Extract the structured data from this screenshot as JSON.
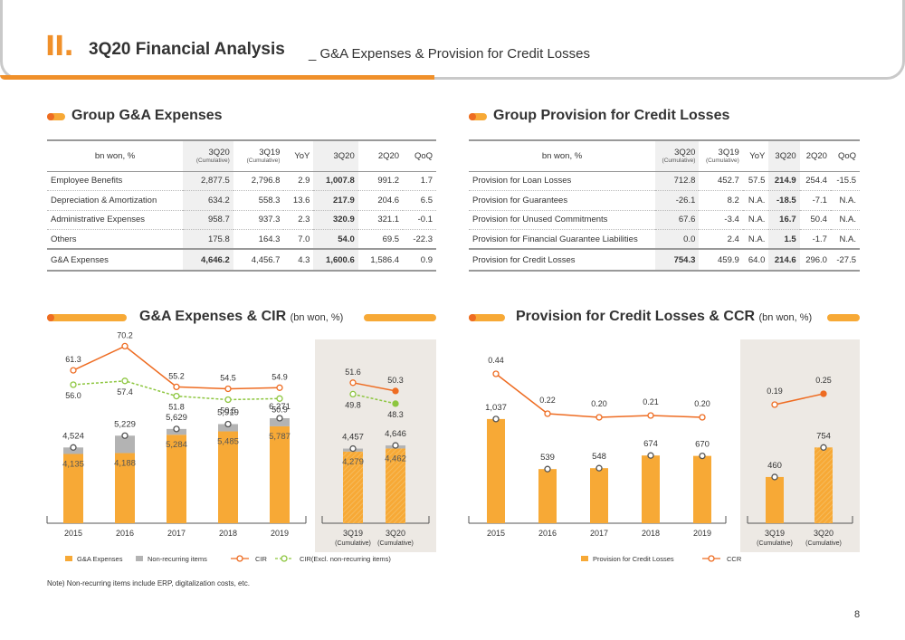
{
  "header": {
    "roman": "II.",
    "title": "3Q20 Financial Analysis",
    "subtitle": "_ G&A Expenses & Provision for Credit Losses"
  },
  "ga_table": {
    "section_title": "Group G&A Expenses",
    "headers": {
      "label": "bn won, %",
      "c1": "3Q20",
      "c1_sub": "(Cumulative)",
      "c2": "3Q19",
      "c2_sub": "(Cumulative)",
      "c3": "YoY",
      "c4": "3Q20",
      "c5": "2Q20",
      "c6": "QoQ"
    },
    "rows": [
      {
        "label": "Employee Benefits",
        "v": [
          "2,877.5",
          "2,796.8",
          "2.9",
          "1,007.8",
          "991.2",
          "1.7"
        ]
      },
      {
        "label": "Depreciation & Amortization",
        "v": [
          "634.2",
          "558.3",
          "13.6",
          "217.9",
          "204.6",
          "6.5"
        ]
      },
      {
        "label": "Administrative Expenses",
        "v": [
          "958.7",
          "937.3",
          "2.3",
          "320.9",
          "321.1",
          "-0.1"
        ]
      },
      {
        "label": "Others",
        "v": [
          "175.8",
          "164.3",
          "7.0",
          "54.0",
          "69.5",
          "-22.3"
        ]
      }
    ],
    "total": {
      "label": "G&A Expenses",
      "v": [
        "4,646.2",
        "4,456.7",
        "4.3",
        "1,600.6",
        "1,586.4",
        "0.9"
      ]
    }
  },
  "pcl_table": {
    "section_title": "Group Provision for Credit Losses",
    "headers": {
      "label": "bn won, %",
      "c1": "3Q20",
      "c1_sub": "(Cumulative)",
      "c2": "3Q19",
      "c2_sub": "(Cumulative)",
      "c3": "YoY",
      "c4": "3Q20",
      "c5": "2Q20",
      "c6": "QoQ"
    },
    "rows": [
      {
        "label": "Provision for Loan Losses",
        "v": [
          "712.8",
          "452.7",
          "57.5",
          "214.9",
          "254.4",
          "-15.5"
        ]
      },
      {
        "label": "Provision for Guarantees",
        "v": [
          "-26.1",
          "8.2",
          "N.A.",
          "-18.5",
          "-7.1",
          "N.A."
        ]
      },
      {
        "label": "Provision for Unused Commitments",
        "v": [
          "67.6",
          "-3.4",
          "N.A.",
          "16.7",
          "50.4",
          "N.A."
        ]
      },
      {
        "label": "Provision for Financial Guarantee Liabilities",
        "v": [
          "0.0",
          "2.4",
          "N.A.",
          "1.5",
          "-1.7",
          "N.A."
        ]
      }
    ],
    "total": {
      "label": "Provision for Credit Losses",
      "v": [
        "754.3",
        "459.9",
        "64.0",
        "214.6",
        "296.0",
        "-27.5"
      ]
    }
  },
  "ga_chart_section": {
    "title": "G&A Expenses & CIR",
    "unit": "(bn won, %)"
  },
  "pcl_chart_section": {
    "title": "Provision for Credit Losses & CCR",
    "unit": "(bn won, %)"
  },
  "colors": {
    "orange": "#f7a936",
    "dark_orange": "#ee6c22",
    "gray": "#b3b3b3",
    "green": "#8dc63f",
    "panel": "#ede9e4"
  },
  "chart_data": [
    {
      "type": "bar",
      "stacked": true,
      "categories": [
        "2015",
        "2016",
        "2017",
        "2018",
        "2019"
      ],
      "series": [
        {
          "name": "G&A Expenses",
          "values": [
            4135,
            4188,
            5284,
            5485,
            5787
          ]
        },
        {
          "name": "Non-recurring items",
          "values": [
            389,
            1041,
            345,
            434,
            484
          ]
        },
        {
          "name": "CIR",
          "type": "line",
          "values": [
            61.3,
            70.2,
            55.2,
            54.5,
            54.9
          ]
        },
        {
          "name": "CIR(Excl. non-recurring items)",
          "type": "line",
          "values": [
            56.0,
            57.4,
            51.8,
            50.5,
            50.9
          ]
        }
      ],
      "totals": [
        4524,
        5229,
        5629,
        5919,
        6271
      ],
      "labels": {
        "total": [
          "4,524",
          "5,229",
          "5,629",
          "5,919",
          "6,271"
        ],
        "ga": [
          "4,135",
          "4,188",
          "5,284",
          "5,485",
          "5,787"
        ],
        "cir": [
          "61.3",
          "70.2",
          "55.2",
          "54.5",
          "54.9"
        ],
        "cir_ex": [
          "56.0",
          "57.4",
          "51.8",
          "50.5",
          "50.9"
        ]
      }
    },
    {
      "type": "bar",
      "stacked": true,
      "categories": [
        "3Q19",
        "3Q20"
      ],
      "category_sub": [
        "(Cumulative)",
        "(Cumulative)"
      ],
      "series": [
        {
          "name": "G&A Expenses",
          "values": [
            4279,
            4462
          ]
        },
        {
          "name": "Non-recurring items",
          "values": [
            178,
            184
          ]
        },
        {
          "name": "CIR",
          "type": "line",
          "values": [
            51.6,
            50.3
          ]
        },
        {
          "name": "CIR(Excl. non-recurring items)",
          "type": "line",
          "values": [
            49.8,
            48.3
          ]
        }
      ],
      "totals": [
        4457,
        4646
      ],
      "labels": {
        "total": [
          "4,457",
          "4,646"
        ],
        "ga": [
          "4,279",
          "4,462"
        ],
        "cir": [
          "51.6",
          "50.3"
        ],
        "cir_ex": [
          "49.8",
          "48.3"
        ]
      }
    },
    {
      "type": "bar",
      "categories": [
        "2015",
        "2016",
        "2017",
        "2018",
        "2019"
      ],
      "series": [
        {
          "name": "Provision for Credit Losses",
          "values": [
            1037,
            539,
            548,
            674,
            670
          ]
        },
        {
          "name": "CCR",
          "type": "line",
          "values": [
            0.44,
            0.22,
            0.2,
            0.21,
            0.2
          ]
        }
      ],
      "labels": {
        "bar": [
          "1,037",
          "539",
          "548",
          "674",
          "670"
        ],
        "ccr": [
          "0.44",
          "0.22",
          "0.20",
          "0.21",
          "0.20"
        ]
      }
    },
    {
      "type": "bar",
      "categories": [
        "3Q19",
        "3Q20"
      ],
      "category_sub": [
        "(Cumulative)",
        "(Cumulative)"
      ],
      "series": [
        {
          "name": "Provision for Credit Losses",
          "values": [
            460,
            754
          ]
        },
        {
          "name": "CCR",
          "type": "line",
          "values": [
            0.19,
            0.25
          ]
        }
      ],
      "labels": {
        "bar": [
          "460",
          "754"
        ],
        "ccr": [
          "0.19",
          "0.25"
        ]
      }
    }
  ],
  "legend_left": [
    "G&A Expenses",
    "Non-recurring items",
    "CIR",
    "CIR(Excl. non-recurring items)"
  ],
  "legend_right": [
    "Provision for Credit Losses",
    "CCR"
  ],
  "note": "Note) Non-recurring items include ERP, digitalization costs, etc.",
  "page_number": "8"
}
